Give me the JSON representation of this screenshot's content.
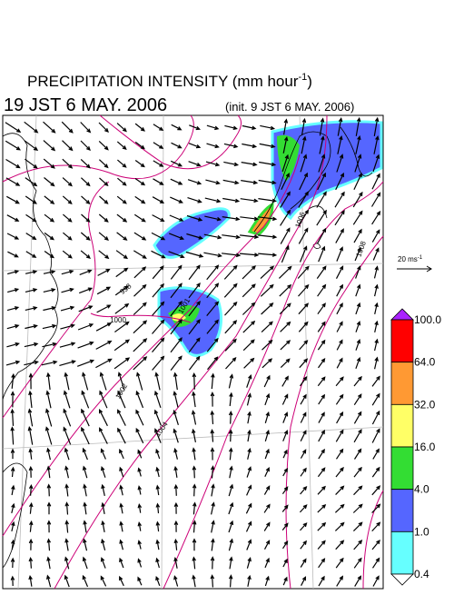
{
  "header": {
    "title": "PRECIPITATION INTENSITY (mm hour",
    "title_sup": "-1",
    "title_end": ")",
    "valid_time": "19 JST 6 MAY. 2006",
    "init_time": "(init. 9 JST 6 MAY. 2006)"
  },
  "reference_vector": {
    "label": "20 ms",
    "label_sup": "-1"
  },
  "colorbar": {
    "labels": [
      "100.0",
      "64.0",
      "32.0",
      "16.0",
      "4.0",
      "1.0",
      "0.4"
    ],
    "colors": [
      "#ff0000",
      "#ff9933",
      "#ffff66",
      "#33dd33",
      "#5566ff",
      "#66ffff"
    ],
    "over_color": "#aa22ff",
    "under_color": "#ffffff"
  },
  "isobar_labels": [
    "1000",
    "1002",
    "1004",
    "1006",
    "1008",
    "998",
    "1001"
  ]
}
